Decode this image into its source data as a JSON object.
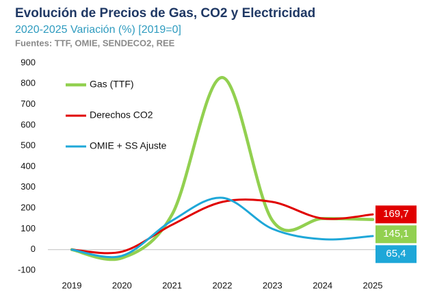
{
  "chart_data": {
    "type": "line",
    "title": "Evolución de Precios de Gas, CO2 y Electricidad",
    "subtitle": "2020-2025 Variación (%) [2019=0]",
    "source": "Fuentes: TTF, OMIE, SENDECO2, REE",
    "categories": [
      "2019",
      "2020",
      "2021",
      "2022",
      "2023",
      "2024",
      "2025"
    ],
    "ylim": [
      -100,
      900
    ],
    "yticks": [
      -100,
      0,
      100,
      200,
      300,
      400,
      500,
      600,
      700,
      800,
      900
    ],
    "grid": false,
    "legend": "upper left",
    "series": [
      {
        "name": "Gas (TTF)",
        "color": "#92d050",
        "values": [
          0,
          -40,
          170,
          830,
          140,
          150,
          145.1
        ],
        "value_labels": [
          null,
          null,
          null,
          null,
          null,
          null,
          "145,1"
        ]
      },
      {
        "name": "Derechos CO2",
        "color": "#e00000",
        "values": [
          0,
          -10,
          120,
          230,
          230,
          150,
          169.7
        ],
        "value_labels": [
          null,
          null,
          null,
          null,
          null,
          null,
          "169,7"
        ]
      },
      {
        "name": "OMIE + SS Ajuste",
        "color": "#1ea7d8",
        "values": [
          0,
          -30,
          140,
          250,
          100,
          50,
          65.4
        ],
        "value_labels": [
          null,
          null,
          null,
          null,
          null,
          null,
          "65,4"
        ]
      }
    ]
  }
}
